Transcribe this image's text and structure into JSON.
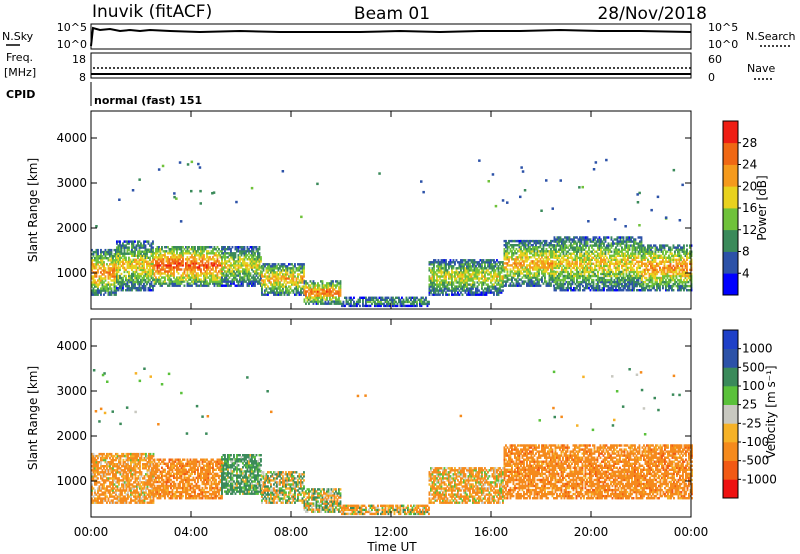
{
  "header": {
    "station": "Inuvik (fitACF)",
    "beam": "Beam 01",
    "date": "28/Nov/2018"
  },
  "top_panels": {
    "nsky_label": "N.Sky",
    "nsky_ticks": [
      "10^5",
      "10^0"
    ],
    "nsearch_label": "N.Search",
    "nsearch_ticks": [
      "10^5",
      "10^0"
    ],
    "freq_label_1": "Freq.",
    "freq_label_2": "[MHz]",
    "freq_ticks": [
      "18",
      "8"
    ],
    "nave_label": "Nave",
    "nave_ticks": [
      "60",
      "0"
    ],
    "cpid_label": "CPID",
    "cpid_value": "normal (fast) 151"
  },
  "colors": {
    "power_scale": [
      "#0000ff",
      "#2c52a8",
      "#3a8a5a",
      "#6fc23a",
      "#e8d21e",
      "#f59a1c",
      "#f06814",
      "#ef1e14"
    ],
    "velocity_scale": [
      "#ee1111",
      "#f25a14",
      "#f58a1c",
      "#f6b227",
      "#c8c8c0",
      "#5ac13a",
      "#3a8a5a",
      "#2c52a8",
      "#1e40c8"
    ]
  },
  "chart_data": [
    {
      "type": "heatmap",
      "title": "",
      "xlabel": "",
      "ylabel": "Slant Range [km]",
      "xlim": [
        0,
        24
      ],
      "ylim": [
        200,
        4600
      ],
      "x_ticks": [
        "00:00",
        "04:00",
        "08:00",
        "12:00",
        "16:00",
        "20:00",
        "00:00"
      ],
      "y_ticks": [
        "1000",
        "2000",
        "3000",
        "4000"
      ],
      "colorbar_label": "Power [dB]",
      "colorbar_ticks": [
        "4",
        "8",
        "12",
        "16",
        "20",
        "24",
        "28"
      ],
      "colorbar_range": [
        0,
        32
      ],
      "echo_bands": [
        {
          "t0": 0.0,
          "t1": 1.0,
          "r0": 500,
          "r1": 1500,
          "level": 24
        },
        {
          "t0": 1.0,
          "t1": 2.5,
          "r0": 600,
          "r1": 1700,
          "level": 20
        },
        {
          "t0": 2.5,
          "t1": 5.2,
          "r0": 700,
          "r1": 1600,
          "level": 28
        },
        {
          "t0": 5.2,
          "t1": 6.8,
          "r0": 700,
          "r1": 1600,
          "level": 18
        },
        {
          "t0": 6.8,
          "t1": 8.5,
          "r0": 500,
          "r1": 1200,
          "level": 22
        },
        {
          "t0": 8.5,
          "t1": 10.0,
          "r0": 300,
          "r1": 800,
          "level": 26
        },
        {
          "t0": 10.0,
          "t1": 13.5,
          "r0": 250,
          "r1": 450,
          "level": 12
        },
        {
          "t0": 13.5,
          "t1": 16.5,
          "r0": 500,
          "r1": 1300,
          "level": 18
        },
        {
          "t0": 16.5,
          "t1": 18.5,
          "r0": 700,
          "r1": 1700,
          "level": 22
        },
        {
          "t0": 18.5,
          "t1": 22.0,
          "r0": 600,
          "r1": 1800,
          "level": 20
        },
        {
          "t0": 22.0,
          "t1": 24.0,
          "r0": 600,
          "r1": 1600,
          "level": 24
        }
      ]
    },
    {
      "type": "heatmap",
      "title": "",
      "xlabel": "Time UT",
      "ylabel": "Slant Range [km]",
      "xlim": [
        0,
        24
      ],
      "ylim": [
        200,
        4600
      ],
      "x_ticks": [
        "00:00",
        "04:00",
        "08:00",
        "12:00",
        "16:00",
        "20:00",
        "00:00"
      ],
      "y_ticks": [
        "1000",
        "2000",
        "3000",
        "4000"
      ],
      "colorbar_label": "Velocity [m s⁻¹]",
      "colorbar_ticks": [
        "-1000",
        "-500",
        "-100",
        "-25",
        "25",
        "100",
        "500",
        "1000"
      ],
      "echo_bands": [
        {
          "t0": 0.0,
          "t1": 2.5,
          "r0": 500,
          "r1": 1600,
          "level": -200
        },
        {
          "t0": 2.5,
          "t1": 5.2,
          "r0": 600,
          "r1": 1500,
          "level": -300
        },
        {
          "t0": 5.2,
          "t1": 6.8,
          "r0": 700,
          "r1": 1600,
          "level": 200
        },
        {
          "t0": 6.8,
          "t1": 8.5,
          "r0": 500,
          "r1": 1200,
          "level": 0
        },
        {
          "t0": 8.5,
          "t1": 10.0,
          "r0": 300,
          "r1": 800,
          "level": 0
        },
        {
          "t0": 10.0,
          "t1": 13.5,
          "r0": 250,
          "r1": 450,
          "level": -100
        },
        {
          "t0": 13.5,
          "t1": 16.5,
          "r0": 500,
          "r1": 1300,
          "level": -150
        },
        {
          "t0": 16.5,
          "t1": 24.0,
          "r0": 600,
          "r1": 1800,
          "level": -300
        }
      ]
    }
  ]
}
